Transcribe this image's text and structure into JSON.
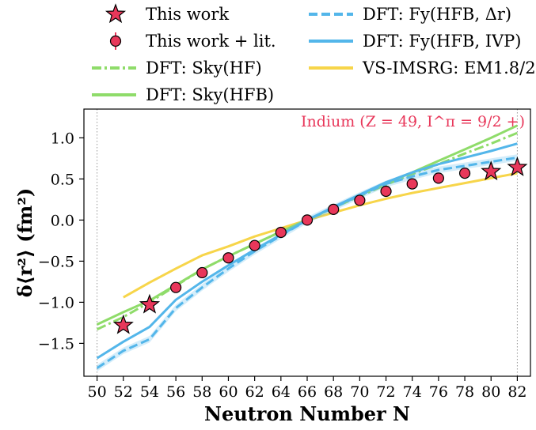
{
  "chart_data": {
    "type": "line",
    "title": "",
    "annotation": "Indium (Z = 49, I^π = 9/2 +)",
    "annotation_color": "#e8375a",
    "xlabel": "Neutron Number N",
    "ylabel": "δ⟨r²⟩ (fm²)",
    "xlim": [
      49,
      83
    ],
    "ylim": [
      -1.9,
      1.35
    ],
    "xticks": [
      50,
      52,
      54,
      56,
      58,
      60,
      62,
      64,
      66,
      68,
      70,
      72,
      74,
      76,
      78,
      80,
      82
    ],
    "yticks": [
      -1.5,
      -1.0,
      -0.5,
      0.0,
      0.5,
      1.0
    ],
    "ytick_labels": [
      "−1.5",
      "−1.0",
      "−0.5",
      "0.0",
      "0.5",
      "1.0"
    ],
    "vlines": [
      50,
      82
    ],
    "legend_placement": "above plot, two columns",
    "series": [
      {
        "name": "This work",
        "kind": "star",
        "color": "#e8375a",
        "x": [
          52,
          54,
          80,
          82
        ],
        "y": [
          -1.28,
          -1.03,
          0.59,
          0.64
        ]
      },
      {
        "name": "This work + lit.",
        "kind": "circle",
        "color": "#e8375a",
        "x": [
          56,
          58,
          60,
          62,
          64,
          66,
          68,
          70,
          72,
          74,
          76,
          78
        ],
        "y": [
          -0.82,
          -0.64,
          -0.46,
          -0.31,
          -0.15,
          0.0,
          0.13,
          0.24,
          0.35,
          0.44,
          0.51,
          0.57
        ]
      },
      {
        "name": "DFT: Sky(HF)",
        "kind": "dashdot",
        "color": "#8fdc6a",
        "x": [
          50,
          52,
          54,
          56,
          58,
          60,
          62,
          64,
          66,
          68,
          70,
          72,
          74,
          76,
          78,
          80,
          82
        ],
        "y": [
          -1.33,
          -1.18,
          -1.0,
          -0.8,
          -0.6,
          -0.44,
          -0.29,
          -0.14,
          0.0,
          0.15,
          0.29,
          0.43,
          0.56,
          0.68,
          0.81,
          0.93,
          1.06
        ]
      },
      {
        "name": "DFT: Sky(HFB)",
        "kind": "solid",
        "color": "#8fdc6a",
        "x": [
          50,
          52,
          54,
          56,
          58,
          60,
          62,
          64,
          66,
          68,
          70,
          72,
          74,
          76,
          78,
          80,
          82
        ],
        "y": [
          -1.27,
          -1.12,
          -0.98,
          -0.79,
          -0.6,
          -0.44,
          -0.29,
          -0.14,
          0.0,
          0.15,
          0.3,
          0.45,
          0.58,
          0.72,
          0.86,
          1.0,
          1.15
        ]
      },
      {
        "name": "DFT: Fy(HFB, Δr)",
        "kind": "dashed",
        "color": "#53b6ea",
        "band": 0.04,
        "x": [
          50,
          52,
          54,
          56,
          58,
          60,
          62,
          64,
          66,
          68,
          70,
          72,
          74,
          76,
          78,
          80,
          82
        ],
        "y": [
          -1.8,
          -1.59,
          -1.45,
          -1.07,
          -0.82,
          -0.59,
          -0.38,
          -0.19,
          0.0,
          0.15,
          0.3,
          0.44,
          0.53,
          0.61,
          0.66,
          0.71,
          0.76
        ]
      },
      {
        "name": "DFT: Fy(HFB, IVP)",
        "kind": "solid",
        "color": "#53b6ea",
        "x": [
          50,
          52,
          54,
          56,
          58,
          60,
          62,
          64,
          66,
          68,
          70,
          72,
          74,
          76,
          78,
          80,
          82
        ],
        "y": [
          -1.68,
          -1.48,
          -1.3,
          -0.97,
          -0.75,
          -0.55,
          -0.36,
          -0.18,
          0.0,
          0.16,
          0.31,
          0.46,
          0.58,
          0.68,
          0.76,
          0.84,
          0.93
        ]
      },
      {
        "name": "VS-IMSRG: EM1.8/2.0",
        "kind": "solid",
        "color": "#f7d54a",
        "x": [
          52,
          54,
          56,
          58,
          60,
          62,
          64,
          66,
          68,
          70,
          72,
          74,
          76,
          78,
          80,
          82
        ],
        "y": [
          -0.94,
          -0.76,
          -0.59,
          -0.43,
          -0.32,
          -0.2,
          -0.1,
          0.0,
          0.09,
          0.18,
          0.26,
          0.33,
          0.39,
          0.45,
          0.51,
          0.57
        ]
      }
    ]
  }
}
